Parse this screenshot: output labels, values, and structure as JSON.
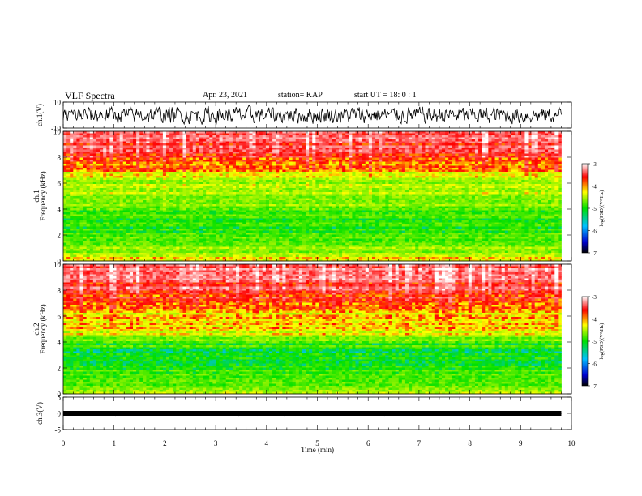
{
  "header": {
    "title": "VLF Spectra",
    "date": "Apr. 23, 2021",
    "station": "station= KAP",
    "start": "start  UT =   18: 0  : 1"
  },
  "chart_data": [
    {
      "type": "line",
      "panel": "waveform-ch1",
      "ylabel": "ch.1(V)",
      "ylim": [
        -10,
        10
      ],
      "yticks": [
        "10",
        "-10"
      ],
      "xlim": [
        0,
        10
      ],
      "series": [
        {
          "values_note": "",
          "x_range": [
            0,
            9.8
          ],
          "approx_mean": 0,
          "approx_amplitude": 6
        }
      ]
    },
    {
      "type": "heatmap",
      "panel": "spectrogram-ch1",
      "ylabel_lines": [
        "ch.1",
        "Frequency (kHz)"
      ],
      "ylim": [
        0,
        10
      ],
      "yticks": [
        "0",
        "2",
        "4",
        "6",
        "8",
        "10"
      ],
      "xlim": [
        0,
        9.8
      ],
      "colorbar": {
        "label": "log(PSD)(V²/Hz)",
        "range": [
          -7,
          -3
        ],
        "ticks": [
          "-3",
          "-4",
          "-5",
          "-6",
          "-7"
        ]
      },
      "frequency_profile_kHz": [
        0,
        1,
        2,
        3,
        4,
        5,
        6,
        7,
        8,
        9,
        10
      ],
      "approx_log_psd": [
        -4.2,
        -5.0,
        -5.2,
        -5.4,
        -5.2,
        -4.8,
        -4.9,
        -4.3,
        -3.9,
        -3.7,
        -3.6
      ]
    },
    {
      "type": "heatmap",
      "panel": "spectrogram-ch2",
      "ylabel_lines": [
        "ch.2",
        "Frequency (kHz)"
      ],
      "ylim": [
        0,
        10
      ],
      "yticks": [
        "0",
        "2",
        "4",
        "6",
        "8",
        "10"
      ],
      "xlim": [
        0,
        9.8
      ],
      "colorbar": {
        "label": "log(PSD)(V²/Hz)",
        "range": [
          -7,
          -3
        ],
        "ticks": [
          "-3",
          "-4",
          "-5",
          "-6",
          "-7"
        ]
      },
      "frequency_profile_kHz": [
        0,
        1,
        2,
        3,
        4,
        5,
        6,
        7,
        8,
        9,
        10
      ],
      "approx_log_psd": [
        -4.8,
        -5.1,
        -5.3,
        -5.5,
        -5.3,
        -4.2,
        -4.4,
        -4.1,
        -3.8,
        -3.6,
        -3.5
      ]
    },
    {
      "type": "line",
      "panel": "waveform-ch3",
      "ylabel": "ch.3(V)",
      "ylim": [
        -5,
        5
      ],
      "yticks": [
        "5",
        "0",
        "-5"
      ],
      "xlim": [
        0,
        10
      ],
      "xlabel": "Time (min)",
      "xticks": [
        "0",
        "1",
        "2",
        "3",
        "4",
        "5",
        "6",
        "7",
        "8",
        "9",
        "10"
      ],
      "series": [
        {
          "x_range": [
            0,
            9.8
          ],
          "approx_mean": 0,
          "approx_amplitude": 0.5
        }
      ]
    }
  ]
}
